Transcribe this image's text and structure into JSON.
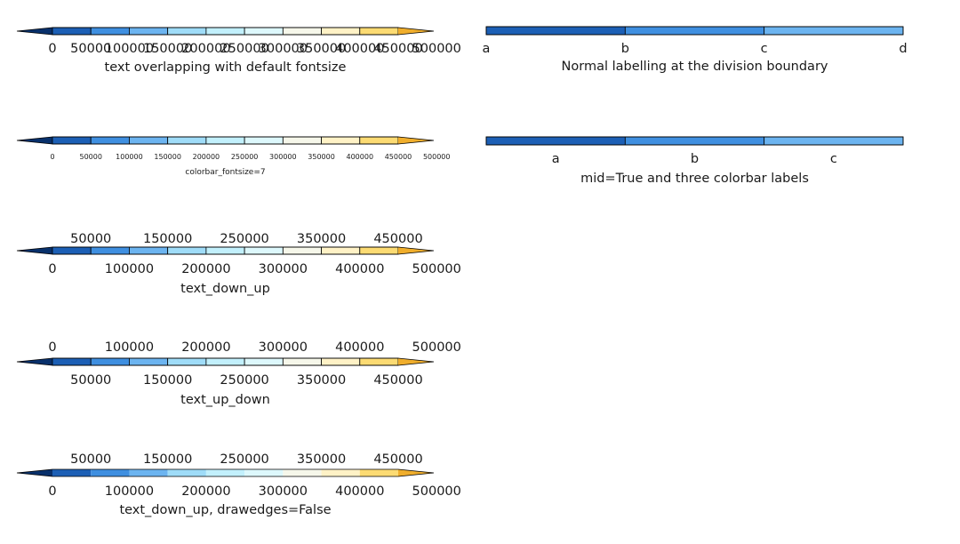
{
  "chart_data": [
    {
      "type": "colorbar",
      "title": "text overlapping with default fontsize",
      "extend": "both",
      "drawedges": true,
      "colors": [
        "#08306b",
        "#1c5fb5",
        "#3f8fe0",
        "#6cb4f0",
        "#9fdcf8",
        "#c2f0fc",
        "#ddf8fc",
        "#f6f7ea",
        "#fff2c6",
        "#fcdb73",
        "#f0ae2c"
      ],
      "tick_labels": [
        {
          "text": "0",
          "pos": "down"
        },
        {
          "text": "50000",
          "pos": "down"
        },
        {
          "text": "100000",
          "pos": "down"
        },
        {
          "text": "150000",
          "pos": "down"
        },
        {
          "text": "200000",
          "pos": "down"
        },
        {
          "text": "250000",
          "pos": "down"
        },
        {
          "text": "300000",
          "pos": "down"
        },
        {
          "text": "350000",
          "pos": "down"
        },
        {
          "text": "400000",
          "pos": "down"
        },
        {
          "text": "450000",
          "pos": "down"
        },
        {
          "text": "500000",
          "pos": "down"
        }
      ]
    },
    {
      "type": "colorbar",
      "title": "colorbar_fontsize=7",
      "extend": "both",
      "drawedges": true,
      "small": true,
      "colors": [
        "#08306b",
        "#1c5fb5",
        "#3f8fe0",
        "#6cb4f0",
        "#9fdcf8",
        "#c2f0fc",
        "#ddf8fc",
        "#f6f7ea",
        "#fff2c6",
        "#fcdb73",
        "#f0ae2c"
      ],
      "tick_labels": [
        {
          "text": "0",
          "pos": "down"
        },
        {
          "text": "50000",
          "pos": "down"
        },
        {
          "text": "100000",
          "pos": "down"
        },
        {
          "text": "150000",
          "pos": "down"
        },
        {
          "text": "200000",
          "pos": "down"
        },
        {
          "text": "250000",
          "pos": "down"
        },
        {
          "text": "300000",
          "pos": "down"
        },
        {
          "text": "350000",
          "pos": "down"
        },
        {
          "text": "400000",
          "pos": "down"
        },
        {
          "text": "450000",
          "pos": "down"
        },
        {
          "text": "500000",
          "pos": "down"
        }
      ]
    },
    {
      "type": "colorbar",
      "title": "text_down_up",
      "extend": "both",
      "drawedges": true,
      "colors": [
        "#08306b",
        "#1c5fb5",
        "#3f8fe0",
        "#6cb4f0",
        "#9fdcf8",
        "#c2f0fc",
        "#ddf8fc",
        "#f6f7ea",
        "#fff2c6",
        "#fcdb73",
        "#f0ae2c"
      ],
      "tick_labels": [
        {
          "text": "0",
          "pos": "down"
        },
        {
          "text": "50000",
          "pos": "up"
        },
        {
          "text": "100000",
          "pos": "down"
        },
        {
          "text": "150000",
          "pos": "up"
        },
        {
          "text": "200000",
          "pos": "down"
        },
        {
          "text": "250000",
          "pos": "up"
        },
        {
          "text": "300000",
          "pos": "down"
        },
        {
          "text": "350000",
          "pos": "up"
        },
        {
          "text": "400000",
          "pos": "down"
        },
        {
          "text": "450000",
          "pos": "up"
        },
        {
          "text": "500000",
          "pos": "down"
        }
      ]
    },
    {
      "type": "colorbar",
      "title": "text_up_down",
      "extend": "both",
      "drawedges": true,
      "colors": [
        "#08306b",
        "#1c5fb5",
        "#3f8fe0",
        "#6cb4f0",
        "#9fdcf8",
        "#c2f0fc",
        "#ddf8fc",
        "#f6f7ea",
        "#fff2c6",
        "#fcdb73",
        "#f0ae2c"
      ],
      "tick_labels": [
        {
          "text": "0",
          "pos": "up"
        },
        {
          "text": "50000",
          "pos": "down"
        },
        {
          "text": "100000",
          "pos": "up"
        },
        {
          "text": "150000",
          "pos": "down"
        },
        {
          "text": "200000",
          "pos": "up"
        },
        {
          "text": "250000",
          "pos": "down"
        },
        {
          "text": "300000",
          "pos": "up"
        },
        {
          "text": "350000",
          "pos": "down"
        },
        {
          "text": "400000",
          "pos": "up"
        },
        {
          "text": "450000",
          "pos": "down"
        },
        {
          "text": "500000",
          "pos": "up"
        }
      ]
    },
    {
      "type": "colorbar",
      "title": "text_down_up, drawedges=False",
      "extend": "both",
      "drawedges": false,
      "colors": [
        "#08306b",
        "#1c5fb5",
        "#3f8fe0",
        "#6cb4f0",
        "#9fdcf8",
        "#c2f0fc",
        "#ddf8fc",
        "#f6f7ea",
        "#fff2c6",
        "#fcdb73",
        "#f0ae2c"
      ],
      "tick_labels": [
        {
          "text": "0",
          "pos": "down"
        },
        {
          "text": "50000",
          "pos": "up"
        },
        {
          "text": "100000",
          "pos": "down"
        },
        {
          "text": "150000",
          "pos": "up"
        },
        {
          "text": "200000",
          "pos": "down"
        },
        {
          "text": "250000",
          "pos": "up"
        },
        {
          "text": "300000",
          "pos": "down"
        },
        {
          "text": "350000",
          "pos": "up"
        },
        {
          "text": "400000",
          "pos": "down"
        },
        {
          "text": "450000",
          "pos": "up"
        },
        {
          "text": "500000",
          "pos": "down"
        }
      ]
    },
    {
      "type": "colorbar",
      "title": "Normal labelling at the division boundary",
      "extend": "neither",
      "drawedges": true,
      "colors": [
        "#08306b",
        "#1c5fb5",
        "#3f8fe0",
        "#6cb4f0",
        "#9fdcf8",
        "#c2f0fc",
        "#ddf8fc",
        "#f6f7ea",
        "#fff2c6",
        "#fcdb73",
        "#f0ae2c"
      ],
      "tick_labels": [
        {
          "text": "a",
          "pos": "down"
        },
        {
          "text": "b",
          "pos": "down"
        },
        {
          "text": "c",
          "pos": "down"
        },
        {
          "text": "d",
          "pos": "down"
        }
      ]
    },
    {
      "type": "colorbar",
      "title": "mid=True and three colorbar labels",
      "extend": "neither",
      "drawedges": true,
      "mid": true,
      "colors": [
        "#08306b",
        "#1c5fb5",
        "#3f8fe0",
        "#6cb4f0",
        "#9fdcf8",
        "#c2f0fc",
        "#ddf8fc",
        "#f6f7ea",
        "#fff2c6",
        "#fcdb73",
        "#f0ae2c"
      ],
      "tick_labels": [
        {
          "text": "a",
          "pos": "down"
        },
        {
          "text": "b",
          "pos": "down"
        },
        {
          "text": "c",
          "pos": "down"
        }
      ]
    }
  ]
}
